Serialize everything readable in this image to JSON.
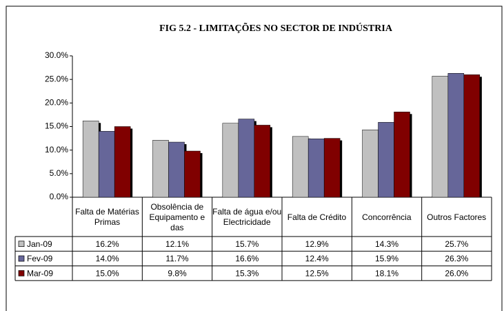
{
  "chart_data": {
    "type": "bar",
    "title": "FIG 5.2 - LIMITAÇÕES  NO SECTOR DE INDÚSTRIA",
    "categories": [
      "Falta de Matérias Primas",
      "Obsolência de Equipamento e das",
      "Falta de água e/ou Electricidade",
      "Falta de Crédito",
      "Concorrência",
      "Outros Factores"
    ],
    "series": [
      {
        "name": "Jan-09",
        "color": "#c0c0c0",
        "values": [
          16.2,
          12.1,
          15.7,
          12.9,
          14.3,
          25.7
        ],
        "value_labels": [
          "16.2%",
          "12.1%",
          "15.7%",
          "12.9%",
          "14.3%",
          "25.7%"
        ]
      },
      {
        "name": "Fev-09",
        "color": "#666699",
        "values": [
          14.0,
          11.7,
          16.6,
          12.4,
          15.9,
          26.3
        ],
        "value_labels": [
          "14.0%",
          "11.7%",
          "16.6%",
          "12.4%",
          "15.9%",
          "26.3%"
        ]
      },
      {
        "name": "Mar-09",
        "color": "#800000",
        "values": [
          15.0,
          9.8,
          15.3,
          12.5,
          18.1,
          26.0
        ],
        "value_labels": [
          "15.0%",
          "9.8%",
          "15.3%",
          "12.5%",
          "18.1%",
          "26.0%"
        ]
      }
    ],
    "ylim": [
      0,
      30
    ],
    "yticks": [
      {
        "value": 0,
        "label": "0.0%"
      },
      {
        "value": 5,
        "label": "5.0%"
      },
      {
        "value": 10,
        "label": "10.0%"
      },
      {
        "value": 15,
        "label": "15.0%"
      },
      {
        "value": 20,
        "label": "20.0%"
      },
      {
        "value": 25,
        "label": "25.0%"
      },
      {
        "value": 30,
        "label": "30.0%"
      }
    ],
    "grid": false
  }
}
